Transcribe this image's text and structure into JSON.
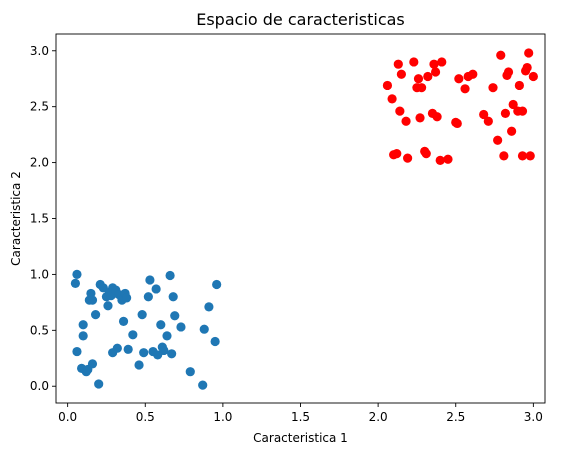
{
  "chart_data": {
    "type": "scatter",
    "title": "Espacio de caracteristicas",
    "xlabel": "Caracteristica 1",
    "ylabel": "Caracteristica 2",
    "xlim": [
      -0.075,
      3.075
    ],
    "ylim": [
      -0.15,
      3.15
    ],
    "xticks": [
      0.0,
      0.5,
      1.0,
      1.5,
      2.0,
      2.5,
      3.0
    ],
    "yticks": [
      0.0,
      0.5,
      1.0,
      1.5,
      2.0,
      2.5,
      3.0
    ],
    "xtick_labels": [
      "0.0",
      "0.5",
      "1.0",
      "1.5",
      "2.0",
      "2.5",
      "3.0"
    ],
    "ytick_labels": [
      "0.0",
      "0.5",
      "1.0",
      "1.5",
      "2.0",
      "2.5",
      "3.0"
    ],
    "grid": false,
    "series": [
      {
        "color": "#1f77b4",
        "points": [
          [
            0.05,
            0.92
          ],
          [
            0.06,
            1.0
          ],
          [
            0.06,
            0.31
          ],
          [
            0.09,
            0.16
          ],
          [
            0.1,
            0.55
          ],
          [
            0.1,
            0.45
          ],
          [
            0.12,
            0.13
          ],
          [
            0.13,
            0.15
          ],
          [
            0.14,
            0.77
          ],
          [
            0.15,
            0.83
          ],
          [
            0.16,
            0.77
          ],
          [
            0.16,
            0.2
          ],
          [
            0.18,
            0.64
          ],
          [
            0.2,
            0.02
          ],
          [
            0.21,
            0.91
          ],
          [
            0.23,
            0.88
          ],
          [
            0.25,
            0.8
          ],
          [
            0.26,
            0.72
          ],
          [
            0.27,
            0.84
          ],
          [
            0.28,
            0.81
          ],
          [
            0.29,
            0.88
          ],
          [
            0.29,
            0.3
          ],
          [
            0.31,
            0.86
          ],
          [
            0.32,
            0.34
          ],
          [
            0.33,
            0.82
          ],
          [
            0.35,
            0.77
          ],
          [
            0.36,
            0.58
          ],
          [
            0.37,
            0.83
          ],
          [
            0.38,
            0.79
          ],
          [
            0.39,
            0.33
          ],
          [
            0.42,
            0.46
          ],
          [
            0.46,
            0.19
          ],
          [
            0.48,
            0.64
          ],
          [
            0.49,
            0.3
          ],
          [
            0.52,
            0.8
          ],
          [
            0.53,
            0.95
          ],
          [
            0.55,
            0.31
          ],
          [
            0.57,
            0.87
          ],
          [
            0.58,
            0.28
          ],
          [
            0.6,
            0.55
          ],
          [
            0.61,
            0.35
          ],
          [
            0.62,
            0.32
          ],
          [
            0.64,
            0.45
          ],
          [
            0.66,
            0.99
          ],
          [
            0.67,
            0.29
          ],
          [
            0.68,
            0.8
          ],
          [
            0.69,
            0.63
          ],
          [
            0.73,
            0.53
          ],
          [
            0.79,
            0.13
          ],
          [
            0.87,
            0.01
          ],
          [
            0.88,
            0.51
          ],
          [
            0.91,
            0.71
          ],
          [
            0.95,
            0.4
          ],
          [
            0.96,
            0.91
          ]
        ]
      },
      {
        "color": "#ff0000",
        "points": [
          [
            2.06,
            2.69
          ],
          [
            2.09,
            2.57
          ],
          [
            2.1,
            2.07
          ],
          [
            2.12,
            2.08
          ],
          [
            2.13,
            2.88
          ],
          [
            2.14,
            2.46
          ],
          [
            2.15,
            2.79
          ],
          [
            2.18,
            2.37
          ],
          [
            2.19,
            2.04
          ],
          [
            2.23,
            2.9
          ],
          [
            2.25,
            2.67
          ],
          [
            2.26,
            2.75
          ],
          [
            2.27,
            2.4
          ],
          [
            2.28,
            2.67
          ],
          [
            2.3,
            2.1
          ],
          [
            2.31,
            2.08
          ],
          [
            2.32,
            2.77
          ],
          [
            2.35,
            2.44
          ],
          [
            2.36,
            2.88
          ],
          [
            2.37,
            2.81
          ],
          [
            2.38,
            2.41
          ],
          [
            2.4,
            2.02
          ],
          [
            2.41,
            2.9
          ],
          [
            2.45,
            2.03
          ],
          [
            2.5,
            2.36
          ],
          [
            2.51,
            2.35
          ],
          [
            2.52,
            2.75
          ],
          [
            2.56,
            2.66
          ],
          [
            2.58,
            2.77
          ],
          [
            2.61,
            2.79
          ],
          [
            2.68,
            2.43
          ],
          [
            2.71,
            2.37
          ],
          [
            2.74,
            2.67
          ],
          [
            2.77,
            2.2
          ],
          [
            2.79,
            2.96
          ],
          [
            2.81,
            2.06
          ],
          [
            2.82,
            2.44
          ],
          [
            2.83,
            2.78
          ],
          [
            2.84,
            2.81
          ],
          [
            2.86,
            2.28
          ],
          [
            2.87,
            2.52
          ],
          [
            2.9,
            2.46
          ],
          [
            2.91,
            2.69
          ],
          [
            2.93,
            2.46
          ],
          [
            2.93,
            2.06
          ],
          [
            2.95,
            2.82
          ],
          [
            2.96,
            2.85
          ],
          [
            2.97,
            2.98
          ],
          [
            2.98,
            2.06
          ],
          [
            3.0,
            2.77
          ]
        ]
      }
    ]
  }
}
